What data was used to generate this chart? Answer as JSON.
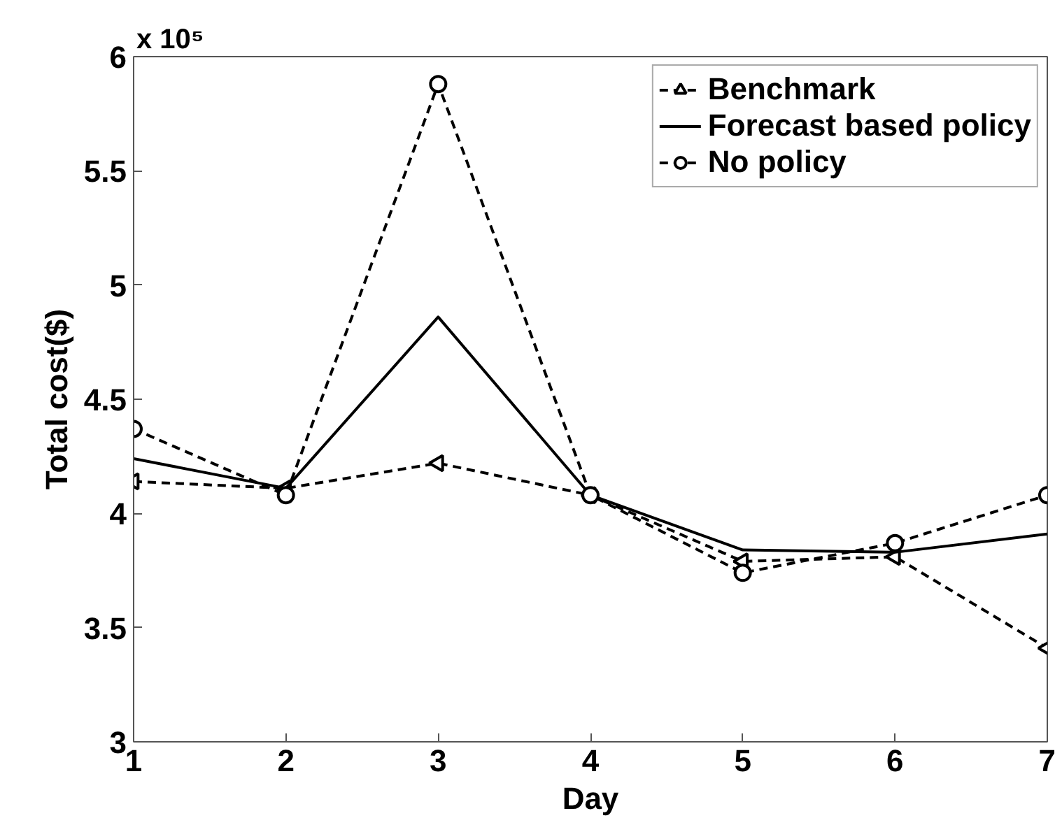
{
  "chart_data": {
    "type": "line",
    "xlabel": "Day",
    "ylabel": "Total cost($)",
    "annotations": [
      "x 10⁵"
    ],
    "x": [
      1,
      2,
      3,
      4,
      5,
      6,
      7
    ],
    "xlim": [
      1,
      7
    ],
    "xticks": [
      1,
      2,
      3,
      4,
      5,
      6,
      7
    ],
    "ylim": [
      3,
      6
    ],
    "yticks": [
      3,
      3.5,
      4,
      4.5,
      5,
      5.5,
      6
    ],
    "grid": false,
    "legend": "top right",
    "series": [
      {
        "name": "Benchmark",
        "color": "#000000",
        "marker": "triangle",
        "line_style": "dashed",
        "values": [
          4.14,
          4.11,
          4.22,
          4.08,
          3.79,
          3.81,
          3.41
        ]
      },
      {
        "name": "Forecast based policy",
        "color": "#000000",
        "marker": "none",
        "line_style": "solid",
        "values": [
          4.24,
          4.11,
          4.86,
          4.08,
          3.84,
          3.83,
          3.91
        ]
      },
      {
        "name": "No policy",
        "color": "#000000",
        "marker": "circle",
        "line_style": "dashed",
        "values": [
          4.37,
          4.08,
          5.88,
          4.08,
          3.74,
          3.87,
          4.08
        ]
      }
    ]
  }
}
